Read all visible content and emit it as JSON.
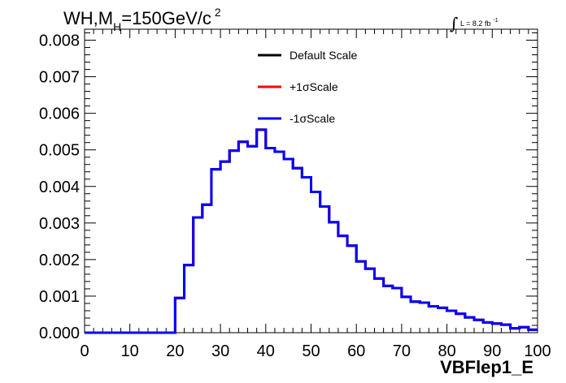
{
  "chart_data": {
    "type": "line",
    "title": {
      "prefix": "WH,M",
      "subscript": "H",
      "suffix": "=150GeV/c",
      "superscript": "2"
    },
    "lumi": {
      "symbol": "∫",
      "text": "L = 8.2 fb",
      "superscript": "-1"
    },
    "xlabel": "VBFlep1_E",
    "ylabel": "",
    "xlim": [
      0,
      100
    ],
    "ylim": [
      0,
      0.0083
    ],
    "x_ticks": [
      "0",
      "10",
      "20",
      "30",
      "40",
      "50",
      "60",
      "70",
      "80",
      "90",
      "100"
    ],
    "y_ticks": [
      "0.000",
      "0.001",
      "0.002",
      "0.003",
      "0.004",
      "0.005",
      "0.006",
      "0.007",
      "0.008"
    ],
    "bin_edges": [
      0,
      2,
      4,
      6,
      8,
      10,
      12,
      14,
      16,
      18,
      20,
      22,
      24,
      26,
      28,
      30,
      32,
      34,
      36,
      38,
      40,
      42,
      44,
      46,
      48,
      50,
      52,
      54,
      56,
      58,
      60,
      62,
      64,
      66,
      68,
      70,
      72,
      74,
      76,
      78,
      80,
      82,
      84,
      86,
      88,
      90,
      92,
      94,
      96,
      98,
      100
    ],
    "series": [
      {
        "name": "Default Scale",
        "color": "#000000",
        "values": [
          0,
          0,
          0,
          0,
          0,
          0,
          0,
          0,
          0,
          0,
          0.00095,
          0.00185,
          0.00315,
          0.0035,
          0.00447,
          0.00468,
          0.00498,
          0.00522,
          0.0051,
          0.00555,
          0.00505,
          0.00495,
          0.00475,
          0.0045,
          0.00425,
          0.00385,
          0.00345,
          0.00302,
          0.00265,
          0.00238,
          0.00195,
          0.00175,
          0.00148,
          0.00128,
          0.00122,
          0.00098,
          0.00085,
          0.00082,
          0.00072,
          0.00068,
          0.0006,
          0.00052,
          0.00042,
          0.00035,
          0.00028,
          0.00025,
          0.00022,
          0.00012,
          0.00015,
          8e-05
        ]
      },
      {
        "name": "+1σScale",
        "color": "#ff0000",
        "values": [
          0,
          0,
          0,
          0,
          0,
          0,
          0,
          0,
          0,
          0,
          0.00095,
          0.00185,
          0.00315,
          0.0035,
          0.00447,
          0.00468,
          0.00498,
          0.00522,
          0.0051,
          0.00555,
          0.00505,
          0.00495,
          0.00475,
          0.0045,
          0.00425,
          0.00385,
          0.00345,
          0.00302,
          0.00265,
          0.00238,
          0.00195,
          0.00175,
          0.00148,
          0.00128,
          0.00122,
          0.00098,
          0.00085,
          0.00082,
          0.00072,
          0.00068,
          0.0006,
          0.00052,
          0.00042,
          0.00035,
          0.00028,
          0.00025,
          0.00022,
          0.00012,
          0.00015,
          8e-05
        ]
      },
      {
        "name": "-1σScale",
        "color": "#0000ff",
        "values": [
          0,
          0,
          0,
          0,
          0,
          0,
          0,
          0,
          0,
          0,
          0.00095,
          0.00185,
          0.00315,
          0.0035,
          0.00447,
          0.00468,
          0.00498,
          0.00522,
          0.0051,
          0.00555,
          0.00505,
          0.00495,
          0.00475,
          0.0045,
          0.00425,
          0.00385,
          0.00345,
          0.00302,
          0.00265,
          0.00238,
          0.00195,
          0.00175,
          0.00148,
          0.00128,
          0.00122,
          0.00098,
          0.00085,
          0.00082,
          0.00072,
          0.00068,
          0.0006,
          0.00052,
          0.00042,
          0.00035,
          0.00028,
          0.00025,
          0.00022,
          0.00012,
          0.00015,
          8e-05
        ]
      }
    ],
    "grid": false,
    "legend": "top-center"
  }
}
